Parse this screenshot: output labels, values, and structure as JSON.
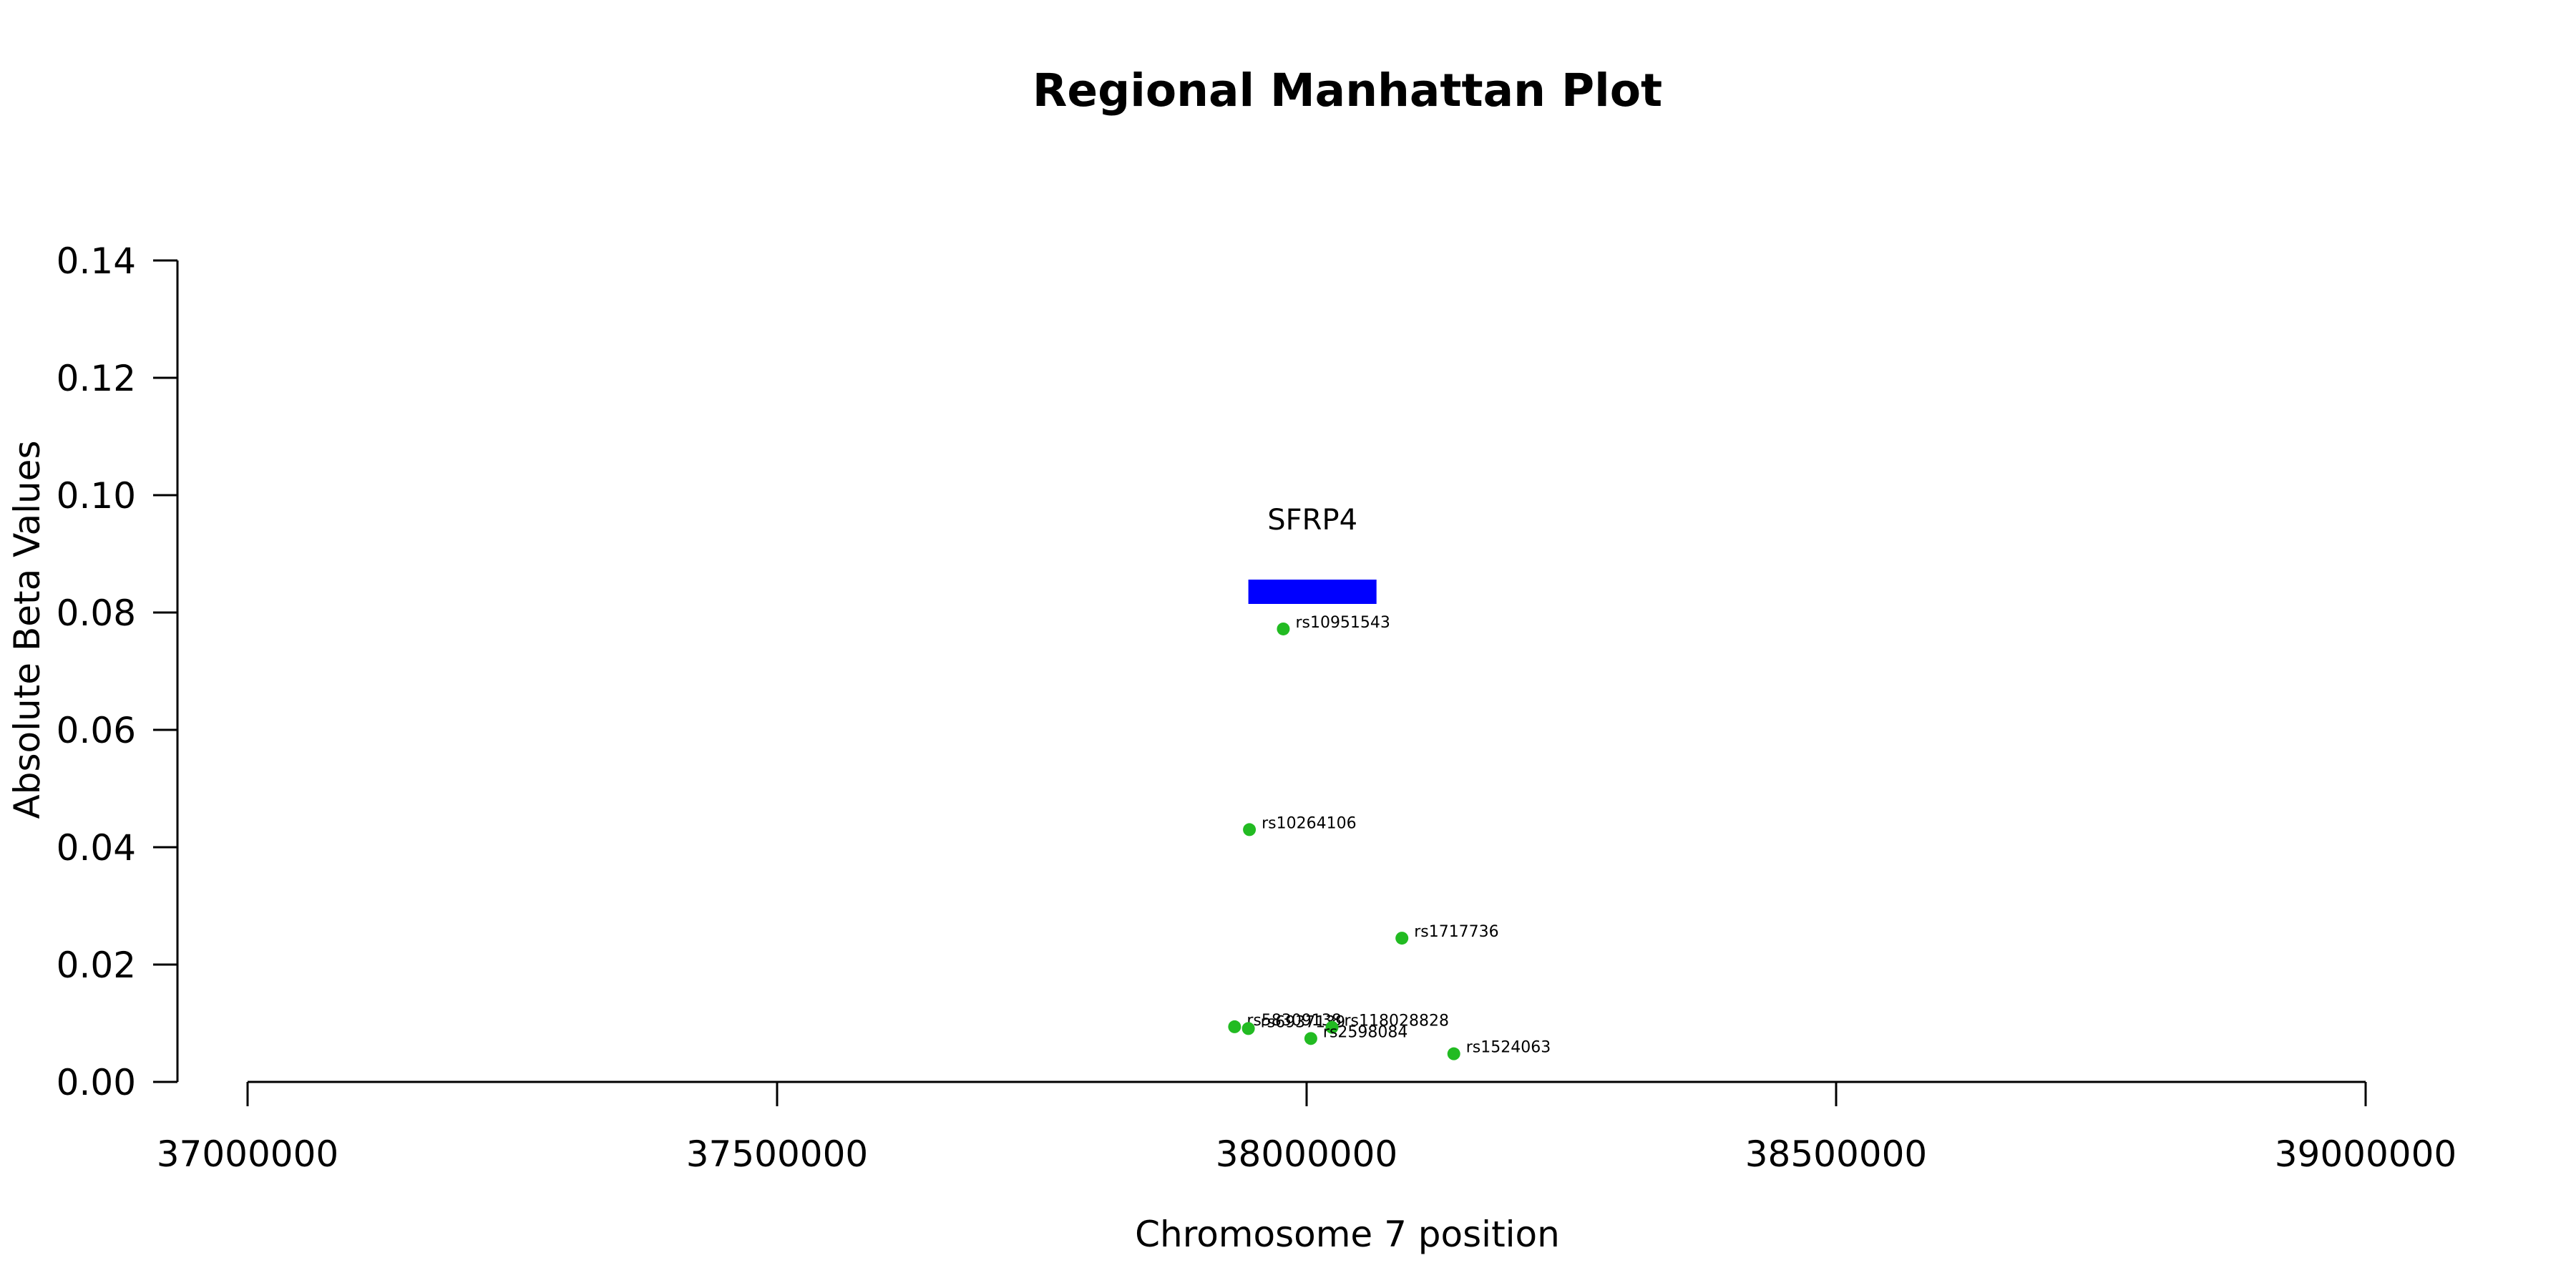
{
  "chart_data": {
    "type": "scatter",
    "title": "Regional Manhattan Plot",
    "xlabel": "Chromosome 7 position",
    "ylabel": "Absolute Beta Values",
    "xlim": [
      37000000,
      39000000
    ],
    "ylim": [
      0,
      0.14
    ],
    "x_ticks": [
      37000000,
      37500000,
      38000000,
      38500000,
      39000000
    ],
    "x_tick_labels": [
      "37000000",
      "37500000",
      "38000000",
      "38500000",
      "39000000"
    ],
    "y_ticks": [
      0,
      0.02,
      0.04,
      0.06,
      0.08,
      0.1,
      0.12,
      0.14
    ],
    "y_tick_labels": [
      "0.00",
      "0.02",
      "0.04",
      "0.06",
      "0.08",
      "0.10",
      "0.12",
      "0.14"
    ],
    "grid": false,
    "point_color": "#22bb22",
    "points": [
      {
        "snp": "rs10951543",
        "x": 37978000,
        "y": 0.0772
      },
      {
        "snp": "rs10264106",
        "x": 37946000,
        "y": 0.043
      },
      {
        "snp": "rs1717736",
        "x": 38090000,
        "y": 0.0245
      },
      {
        "snp": "rs58309138",
        "x": 37932000,
        "y": 0.0094
      },
      {
        "snp": "rs6937139",
        "x": 37945000,
        "y": 0.0091
      },
      {
        "snp": "rs118028828",
        "x": 38024000,
        "y": 0.0093
      },
      {
        "snp": "rs2598084",
        "x": 38004000,
        "y": 0.0074
      },
      {
        "snp": "rs1524063",
        "x": 38139000,
        "y": 0.0048
      }
    ],
    "gene": {
      "name": "SFRP4",
      "start": 37945000,
      "end": 38066000,
      "color": "#0000ff"
    }
  }
}
